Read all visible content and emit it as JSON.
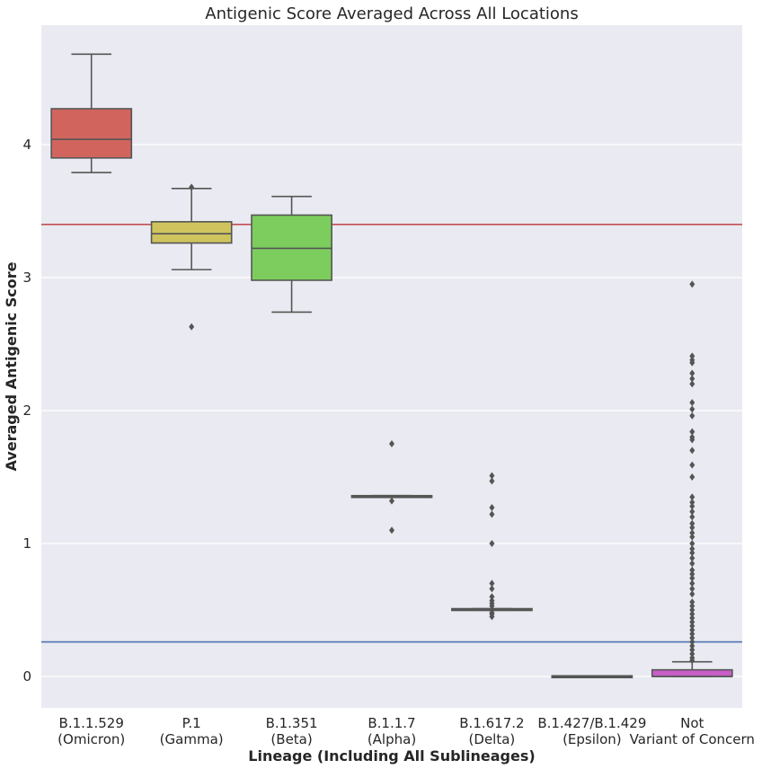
{
  "chart_data": {
    "type": "box",
    "title": "Antigenic Score Averaged Across All Locations",
    "xlabel": "Lineage (Including All Sublineages)",
    "ylabel": "Averaged Antigenic Score",
    "ylim": [
      -0.23,
      4.9
    ],
    "yticks": [
      0,
      1,
      2,
      3,
      4
    ],
    "grid": true,
    "reference_lines": [
      {
        "y": 3.4,
        "color": "#c44e52"
      },
      {
        "y": 0.26,
        "color": "#4c72b0"
      }
    ],
    "categories": [
      {
        "line1": "B.1.1.529",
        "line2": "(Omicron)"
      },
      {
        "line1": "P.1",
        "line2": "(Gamma)"
      },
      {
        "line1": "B.1.351",
        "line2": "(Beta)"
      },
      {
        "line1": "B.1.1.7",
        "line2": "(Alpha)"
      },
      {
        "line1": "B.1.617.2",
        "line2": "(Delta)"
      },
      {
        "line1": "B.1.427/B.1.429",
        "line2": "(Epsilon)"
      },
      {
        "line1": "Not",
        "line2": "Variant of Concern"
      }
    ],
    "boxes": [
      {
        "color": "#d1655e",
        "whisker_low": 3.79,
        "q1": 3.9,
        "median": 4.04,
        "q3": 4.27,
        "whisker_high": 4.68,
        "outliers": []
      },
      {
        "color": "#cfc35d",
        "whisker_low": 3.06,
        "q1": 3.26,
        "median": 3.33,
        "q3": 3.42,
        "whisker_high": 3.67,
        "outliers": [
          3.68,
          2.63
        ]
      },
      {
        "color": "#7dcd5e",
        "whisker_low": 2.74,
        "q1": 2.98,
        "median": 3.22,
        "q3": 3.47,
        "whisker_high": 3.61,
        "outliers": []
      },
      {
        "color": "#5ecb92",
        "whisker_low": 1.35,
        "q1": 1.35,
        "median": 1.355,
        "q3": 1.36,
        "whisker_high": 1.36,
        "outliers": [
          1.75,
          1.32,
          1.1
        ]
      },
      {
        "color": "#5ec6cf",
        "whisker_low": 0.5,
        "q1": 0.5,
        "median": 0.505,
        "q3": 0.51,
        "whisker_high": 0.51,
        "outliers": [
          1.51,
          1.47,
          1.27,
          1.22,
          1.0,
          0.7,
          0.66,
          0.6,
          0.57,
          0.55,
          0.53,
          0.48,
          0.47,
          0.45
        ]
      },
      {
        "color": "#6273cf",
        "whisker_low": 0.0,
        "q1": 0.0,
        "median": 0.0,
        "q3": 0.005,
        "whisker_high": 0.005,
        "outliers": []
      },
      {
        "color": "#c95ec9",
        "whisker_low": 0.0,
        "q1": 0.0,
        "median": 0.0,
        "q3": 0.05,
        "whisker_high": 0.11,
        "outliers": [
          2.95,
          2.41,
          2.38,
          2.36,
          2.28,
          2.24,
          2.2,
          2.06,
          2.01,
          1.96,
          1.84,
          1.8,
          1.78,
          1.7,
          1.59,
          1.5,
          1.35,
          1.31,
          1.28,
          1.24,
          1.2,
          1.15,
          1.12,
          1.08,
          1.05,
          1.0,
          0.96,
          0.93,
          0.89,
          0.85,
          0.8,
          0.77,
          0.74,
          0.7,
          0.66,
          0.62,
          0.56,
          0.53,
          0.5,
          0.47,
          0.44,
          0.41,
          0.38,
          0.35,
          0.32,
          0.29,
          0.26,
          0.23,
          0.2,
          0.17,
          0.14,
          0.12
        ]
      }
    ]
  }
}
